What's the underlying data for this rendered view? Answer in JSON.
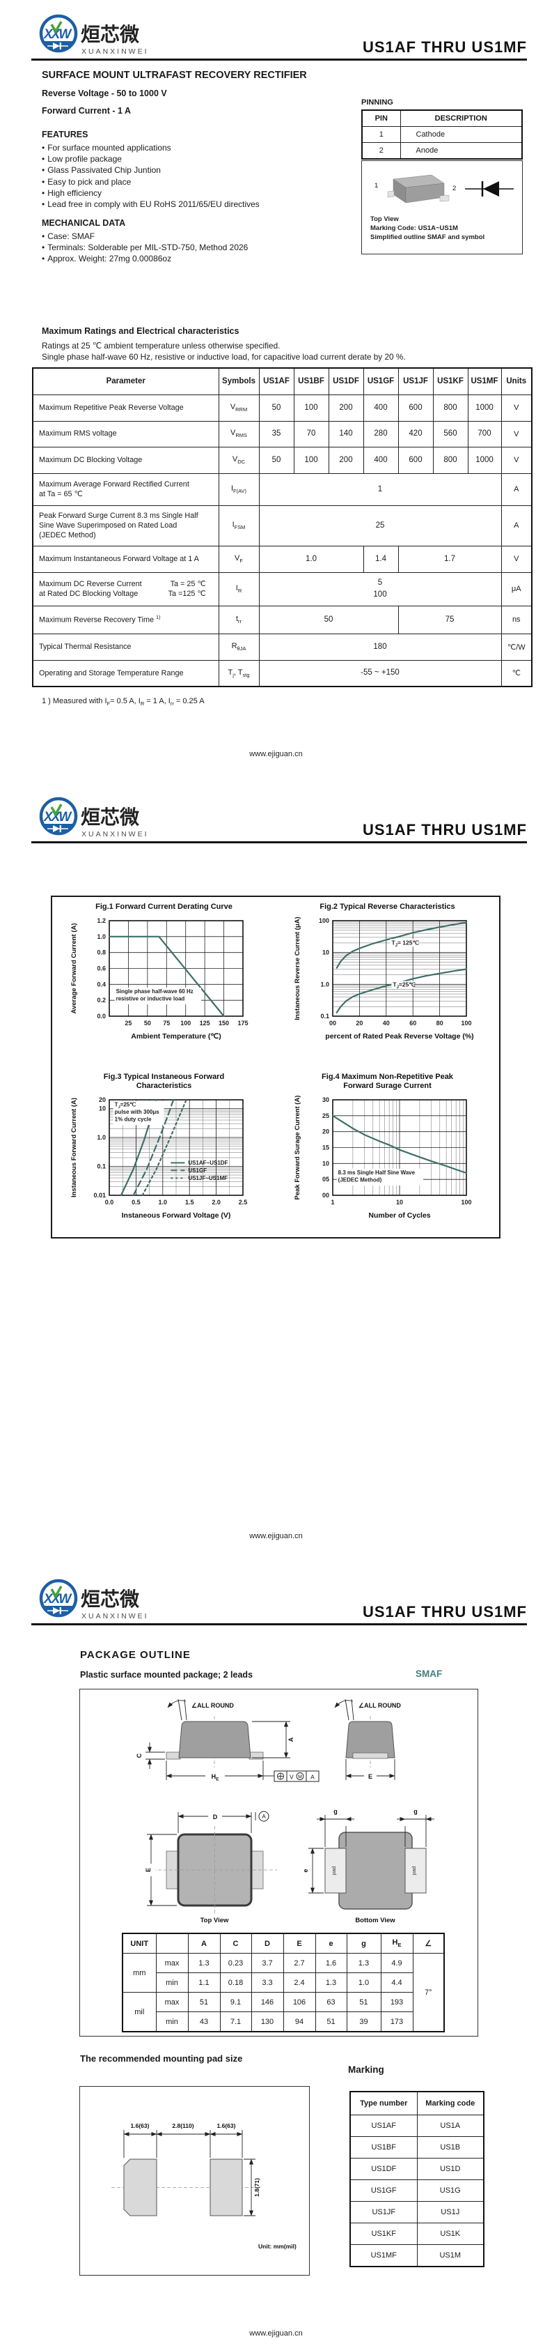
{
  "doc_title": "US1AF  THRU  US1MF",
  "footer_url": "www.ejiguan.cn",
  "brand": {
    "logo_monogram": "XXW",
    "logo_cn": "烜芯微",
    "logo_en": "XUANXINWEI"
  },
  "colors": {
    "brand_blue": "#1d5fa5",
    "brand_green": "#43a636",
    "accent_teal": "#3f7f7d",
    "curve": "#3d6f67"
  },
  "page1": {
    "product_heading": "SURFACE MOUNT ULTRAFAST RECOVERY RECTIFIER",
    "subtitle1": "Reverse Voltage - 50 to 1000 V",
    "subtitle2": "Forward Current - 1 A",
    "features_title": "FEATURES",
    "features": [
      "For surface mounted applications",
      "Low profile package",
      "Glass Passivated Chip Juntion",
      "Easy to pick and place",
      "High efficiency",
      "Lead free in comply with EU RoHS 2011/65/EU directives"
    ],
    "mech_title": "MECHANICAL DATA",
    "mech": [
      "Case: SMAF",
      "Terminals: Solderable per MIL-STD-750, Method 2026",
      "Approx. Weight: 27mg  0.00086oz"
    ],
    "pinning": {
      "title": "PINNING",
      "headers": [
        "PIN",
        "DESCRIPTION"
      ],
      "rows": [
        [
          "1",
          "Cathode"
        ],
        [
          "2",
          "Anode"
        ]
      ]
    },
    "outline_box": {
      "pin1": "1",
      "pin2": "2",
      "caption1": "Top View",
      "caption2": "Marking Code: US1A~US1M",
      "caption3": "Simplified outline SMAF and symbol"
    },
    "ratings": {
      "title": "Maximum Ratings and Electrical characteristics",
      "note1": "Ratings at 25 ℃ ambient temperature unless otherwise specified.",
      "note2": "Single phase half-wave 60 Hz, resistive or inductive load, for capacitive load current derate by 20 %.",
      "headers": [
        "Parameter",
        "Symbols",
        "US1AF",
        "US1BF",
        "US1DF",
        "US1GF",
        "US1JF",
        "US1KF",
        "US1MF",
        "Units"
      ],
      "rows": [
        {
          "param": {
            "lines": [
              "Maximum Repetitive Peak Reverse Voltage"
            ]
          },
          "symbol": "V{RRM}",
          "cells": [
            {
              "t": "50"
            },
            {
              "t": "100"
            },
            {
              "t": "200"
            },
            {
              "t": "400"
            },
            {
              "t": "600"
            },
            {
              "t": "800"
            },
            {
              "t": "1000"
            }
          ],
          "unit": "V"
        },
        {
          "param": {
            "lines": [
              "Maximum RMS voltage"
            ]
          },
          "symbol": "V{RMS}",
          "cells": [
            {
              "t": "35"
            },
            {
              "t": "70"
            },
            {
              "t": "140"
            },
            {
              "t": "280"
            },
            {
              "t": "420"
            },
            {
              "t": "560"
            },
            {
              "t": "700"
            }
          ],
          "unit": "V"
        },
        {
          "param": {
            "lines": [
              "Maximum DC Blocking Voltage"
            ]
          },
          "symbol": "V{DC}",
          "cells": [
            {
              "t": "50"
            },
            {
              "t": "100"
            },
            {
              "t": "200"
            },
            {
              "t": "400"
            },
            {
              "t": "600"
            },
            {
              "t": "800"
            },
            {
              "t": "1000"
            }
          ],
          "unit": "V"
        },
        {
          "param": {
            "lines": [
              "Maximum Average Forward Rectified Current",
              "at Ta = 65 ℃"
            ]
          },
          "symbol": "I{F(AV)}",
          "cells": [
            {
              "t": "1",
              "span": 7
            }
          ],
          "unit": "A"
        },
        {
          "param": {
            "lines": [
              "Peak Forward Surge Current 8.3 ms Single Half",
              "Sine Wave Superimposed on Rated Load",
              "(JEDEC Method)"
            ]
          },
          "symbol": "I{FSM}",
          "cells": [
            {
              "t": "25",
              "span": 7
            }
          ],
          "unit": "A"
        },
        {
          "param": {
            "lines": [
              "Maximum Instantaneous Forward Voltage at 1 A"
            ]
          },
          "symbol": "V{F}",
          "cells": [
            {
              "t": "1.0",
              "span": 3
            },
            {
              "t": "1.4",
              "span": 1
            },
            {
              "t": "1.7",
              "span": 3
            }
          ],
          "unit": "V"
        },
        {
          "param": {
            "lines": [
              "Maximum DC Reverse Current",
              "at Rated DC Blocking Voltage"
            ],
            "conds": [
              "Ta = 25 ℃",
              "Ta =125 ℃"
            ]
          },
          "symbol": "I{R}",
          "cells": [
            {
              "t": "5\n100",
              "span": 7
            }
          ],
          "unit": "μA"
        },
        {
          "param": {
            "lines": [
              "Maximum Reverse Recovery Time ^{1)}"
            ]
          },
          "symbol": "t{rr}",
          "cells": [
            {
              "t": "50",
              "span": 4
            },
            {
              "t": "75",
              "span": 3
            }
          ],
          "unit": "ns"
        },
        {
          "param": {
            "lines": [
              "Typical Thermal Resistance"
            ]
          },
          "symbol": "R{θJA}",
          "cells": [
            {
              "t": "180",
              "span": 7
            }
          ],
          "unit": "℃/W"
        },
        {
          "param": {
            "lines": [
              "Operating and Storage Temperature Range"
            ]
          },
          "symbol": "T{j}, T{stg}",
          "cells": [
            {
              "t": "-55 ~ +150",
              "span": 7
            }
          ],
          "unit": "℃"
        }
      ],
      "footnote": "1 ) Measured with I{F}= 0.5 A, I{R} = 1 A, I{rr} = 0.25 A"
    }
  },
  "chart_data": [
    {
      "type": "line",
      "title_lines": [
        "Fig.1  Forward Current Derating Curve"
      ],
      "xlabel": "Ambient Temperature (℃)",
      "ylabel": "Average Forward Current  (A)",
      "xscale": "linear",
      "xlim": [
        0,
        175
      ],
      "yscale": "linear",
      "ylim": [
        0,
        1.2
      ],
      "xticks": [
        {
          "v": 25,
          "l": "25"
        },
        {
          "v": 50,
          "l": "50"
        },
        {
          "v": 75,
          "l": "75"
        },
        {
          "v": 100,
          "l": "100"
        },
        {
          "v": 125,
          "l": "125"
        },
        {
          "v": 150,
          "l": "150"
        },
        {
          "v": 175,
          "l": "175"
        }
      ],
      "yticks": [
        {
          "v": 0,
          "l": "0.0"
        },
        {
          "v": 0.2,
          "l": "0.2"
        },
        {
          "v": 0.4,
          "l": "0.4"
        },
        {
          "v": 0.6,
          "l": "0.6"
        },
        {
          "v": 0.8,
          "l": "0.8"
        },
        {
          "v": 1.0,
          "l": "1.0"
        },
        {
          "v": 1.2,
          "l": "1.2"
        }
      ],
      "series": [
        {
          "name": "IF(AV) derating",
          "dash": null,
          "points": [
            [
              0,
              1.0
            ],
            [
              65,
              1.0
            ],
            [
              150,
              0
            ]
          ]
        }
      ],
      "ann": [
        {
          "fx": 0.05,
          "fy": 0.76,
          "lines": [
            "Single phase half-wave 60 Hz",
            "resistive or inductive load"
          ]
        }
      ]
    },
    {
      "type": "line",
      "title_lines": [
        "Fig.2  Typical Reverse Characteristics"
      ],
      "xlabel": "percent of Rated Peak Reverse Voltage (%)",
      "ylabel": "Instaneous Reverse Current (μA)",
      "xscale": "linear",
      "xlim": [
        0,
        100
      ],
      "yscale": "log",
      "ylim": [
        0.1,
        100
      ],
      "xticks": [
        {
          "v": 0,
          "l": "00"
        },
        {
          "v": 20,
          "l": "20"
        },
        {
          "v": 40,
          "l": "40"
        },
        {
          "v": 60,
          "l": "60"
        },
        {
          "v": 80,
          "l": "80"
        },
        {
          "v": 100,
          "l": "100"
        }
      ],
      "yticks": [
        {
          "v": 0.1,
          "l": "0.1"
        },
        {
          "v": 1,
          "l": "1.0"
        },
        {
          "v": 10,
          "l": "10"
        },
        {
          "v": 100,
          "l": "100"
        }
      ],
      "series": [
        {
          "name": "T{J}= 125℃",
          "dash": null,
          "points": [
            [
              3,
              3.3
            ],
            [
              6,
              5.3
            ],
            [
              10,
              8
            ],
            [
              15,
              11
            ],
            [
              20,
              13.5
            ],
            [
              30,
              19
            ],
            [
              40,
              25
            ],
            [
              50,
              32
            ],
            [
              60,
              42
            ],
            [
              70,
              52
            ],
            [
              80,
              63
            ],
            [
              90,
              75
            ],
            [
              100,
              88
            ]
          ]
        },
        {
          "name": "T{J}=25℃",
          "dash": null,
          "points": [
            [
              3,
              0.13
            ],
            [
              6,
              0.2
            ],
            [
              10,
              0.3
            ],
            [
              15,
              0.41
            ],
            [
              20,
              0.5
            ],
            [
              30,
              0.68
            ],
            [
              40,
              0.9
            ],
            [
              50,
              1.15
            ],
            [
              60,
              1.5
            ],
            [
              70,
              1.85
            ],
            [
              80,
              2.2
            ],
            [
              90,
              2.6
            ],
            [
              100,
              3.0
            ]
          ]
        }
      ],
      "labels": [
        {
          "text": "T{J}= 125℃",
          "fx": 0.44,
          "fy": 0.25
        },
        {
          "text": "T{J}=25℃",
          "fx": 0.45,
          "fy": 0.69
        }
      ]
    },
    {
      "type": "line",
      "title_lines": [
        "Fig.3  Typical Instaneous Forward",
        "Characteristics"
      ],
      "xlabel": "Instaneous Forward Voltage (V)",
      "ylabel": "Instaneous Forward Current (A)",
      "xscale": "linear",
      "xlim": [
        0,
        2.5
      ],
      "xminor": 0.25,
      "yscale": "log",
      "ylim": [
        0.01,
        20
      ],
      "xticks": [
        {
          "v": 0,
          "l": "0.0"
        },
        {
          "v": 0.5,
          "l": "0.5"
        },
        {
          "v": 1.0,
          "l": "1.0"
        },
        {
          "v": 1.5,
          "l": "1.5"
        },
        {
          "v": 2.0,
          "l": "2.0"
        },
        {
          "v": 2.5,
          "l": "2.5"
        }
      ],
      "yticks": [
        {
          "v": 0.01,
          "l": "0.01"
        },
        {
          "v": 0.1,
          "l": "0.1"
        },
        {
          "v": 1,
          "l": "1.0"
        },
        {
          "v": 10,
          "l": "10"
        },
        {
          "v": 20,
          "l": "20"
        }
      ],
      "series": [
        {
          "name": "US1AF~US1DF",
          "dash": null,
          "points": [
            [
              0.22,
              0.01
            ],
            [
              0.45,
              0.08
            ],
            [
              0.65,
              0.8
            ],
            [
              0.8,
              6
            ],
            [
              0.88,
              20
            ]
          ]
        },
        {
          "name": "US1GF",
          "dash": "9,5",
          "points": [
            [
              0.45,
              0.01
            ],
            [
              0.7,
              0.08
            ],
            [
              0.92,
              0.8
            ],
            [
              1.1,
              6
            ],
            [
              1.2,
              20
            ]
          ]
        },
        {
          "name": "US1JF~US1MF",
          "dash": "3,4",
          "points": [
            [
              0.62,
              0.01
            ],
            [
              0.88,
              0.08
            ],
            [
              1.12,
              0.8
            ],
            [
              1.32,
              6
            ],
            [
              1.44,
              20
            ]
          ]
        }
      ],
      "ann": [
        {
          "fx": 0.04,
          "fy": 0.07,
          "lines": [
            "T{J}=25℃",
            "pulse with 300μs",
            "1% duty cycle"
          ]
        }
      ],
      "legend": {
        "fx": 0.46,
        "fy": 0.66,
        "entries": [
          "US1AF~US1DF",
          "US1GF",
          "US1JF~US1MF"
        ]
      }
    },
    {
      "type": "line",
      "title_lines": [
        "Fig.4  Maximum Non-Repetitive Peak",
        "Forward Surage Current"
      ],
      "xlabel": "Number of Cycles",
      "ylabel": "Peak Forward Surage Current (A)",
      "xscale": "log",
      "xlim": [
        1,
        100
      ],
      "yscale": "linear",
      "ylim": [
        0,
        30
      ],
      "xticks": [
        {
          "v": 1,
          "l": "1"
        },
        {
          "v": 10,
          "l": "10"
        },
        {
          "v": 100,
          "l": "100"
        }
      ],
      "yticks": [
        {
          "v": 0,
          "l": "00"
        },
        {
          "v": 5,
          "l": "05"
        },
        {
          "v": 10,
          "l": "10"
        },
        {
          "v": 15,
          "l": "15"
        },
        {
          "v": 20,
          "l": "20"
        },
        {
          "v": 25,
          "l": "25"
        },
        {
          "v": 30,
          "l": "30"
        }
      ],
      "series": [
        {
          "name": "IFSM",
          "dash": null,
          "points": [
            [
              1,
              25
            ],
            [
              2,
              21
            ],
            [
              3,
              19
            ],
            [
              5,
              17
            ],
            [
              7,
              15.8
            ],
            [
              10,
              14.3
            ],
            [
              20,
              12
            ],
            [
              30,
              10.7
            ],
            [
              50,
              9.2
            ],
            [
              70,
              8.1
            ],
            [
              100,
              7
            ]
          ]
        }
      ],
      "ann": [
        {
          "fx": 0.04,
          "fy": 0.78,
          "lines": [
            "8.3 ms Single Half Sine Wave",
            "(JEDEC Method)"
          ]
        }
      ]
    }
  ],
  "page3": {
    "outline_title": "PACKAGE  OUTLINE",
    "outline_subtitle": "Plastic surface mounted package; 2 leads",
    "package_name": "SMAF",
    "drawing_labels": {
      "all_round": "∠ALL ROUND",
      "dim_c": "C",
      "dim_a": "A",
      "dim_he": "H{E}",
      "dim_e": "E",
      "dim_d": "D",
      "datum_a": "A",
      "dim_g": "g",
      "dim_e2": "e",
      "pad": "pad",
      "tol_v": "V",
      "tol_m": "M",
      "tol_a": "A",
      "top_view": "Top View",
      "bottom_view": "Bottom View"
    },
    "dim_table": {
      "unit_label": "UNIT",
      "col_headers": [
        "A",
        "C",
        "D",
        "E",
        "e",
        "g",
        "H{E}",
        "∠"
      ],
      "units": [
        {
          "name": "mm",
          "rows": [
            {
              "label": "max",
              "values": [
                "1.3",
                "0.23",
                "3.7",
                "2.7",
                "1.6",
                "1.3",
                "4.9"
              ]
            },
            {
              "label": "min",
              "values": [
                "1.1",
                "0.18",
                "3.3",
                "2.4",
                "1.3",
                "1.0",
                "4.4"
              ]
            }
          ]
        },
        {
          "name": "mil",
          "rows": [
            {
              "label": "max",
              "values": [
                "51",
                "9.1",
                "146",
                "106",
                "63",
                "51",
                "193"
              ]
            },
            {
              "label": "min",
              "values": [
                "43",
                "7.1",
                "130",
                "94",
                "51",
                "39",
                "173"
              ]
            }
          ]
        }
      ],
      "angle": "7°"
    },
    "pad_section": {
      "title": "The recommended mounting pad size",
      "dim_left": "1.6(63)",
      "dim_mid": "2.8(110)",
      "dim_right": "1.6(63)",
      "dim_height": "1.8(71)",
      "unit_note": "Unit:  mm(mil)"
    },
    "marking": {
      "title": "Marking",
      "headers": [
        "Type number",
        "Marking code"
      ],
      "rows": [
        [
          "US1AF",
          "US1A"
        ],
        [
          "US1BF",
          "US1B"
        ],
        [
          "US1DF",
          "US1D"
        ],
        [
          "US1GF",
          "US1G"
        ],
        [
          "US1JF",
          "US1J"
        ],
        [
          "US1KF",
          "US1K"
        ],
        [
          "US1MF",
          "US1M"
        ]
      ]
    }
  }
}
